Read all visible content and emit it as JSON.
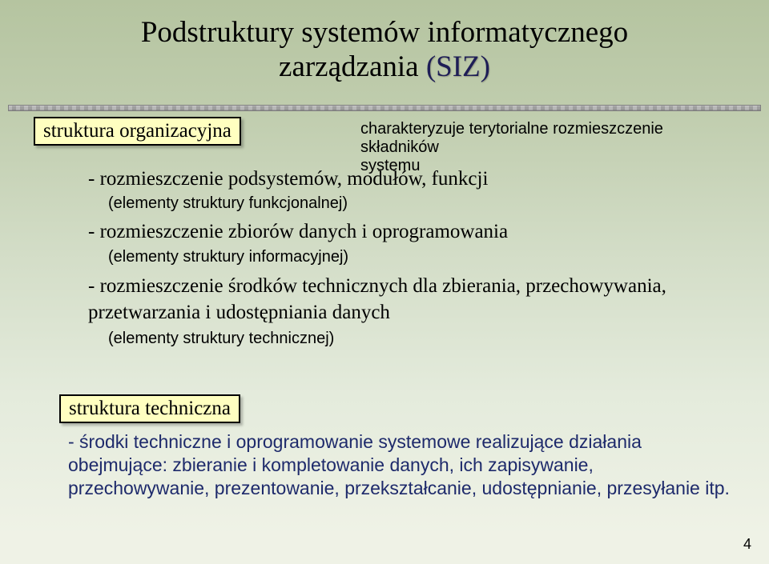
{
  "title": {
    "line1_a": "Podstruktury systemów",
    "line1_b": "informatycznego",
    "line2_a": "zarządzania",
    "line2_b": "(SIZ)"
  },
  "boxes": {
    "org": "struktura organizacyjna",
    "tech": "struktura techniczna"
  },
  "note": {
    "l1": "charakteryzuje terytorialne rozmieszczenie składników",
    "l2": "systemu"
  },
  "items": {
    "i1": "- rozmieszczenie podsystemów, modułów, funkcji",
    "s1": "(elementy struktury funkcjonalnej)",
    "i2": "- rozmieszczenie zbiorów danych i oprogramowania",
    "s2": "(elementy struktury informacyjnej)",
    "i3": "- rozmieszczenie środków technicznych dla zbierania, przechowywania, przetwarzania i udostępniania danych",
    "s3": "(elementy struktury technicznej)"
  },
  "bottom": "- środki techniczne i oprogramowanie systemowe realizujące działania obejmujące: zbieranie i kompletowanie danych, ich zapisywanie, przechowywanie, prezentowanie, przekształcanie, udostępnianie, przesyłanie itp.",
  "page": "4"
}
